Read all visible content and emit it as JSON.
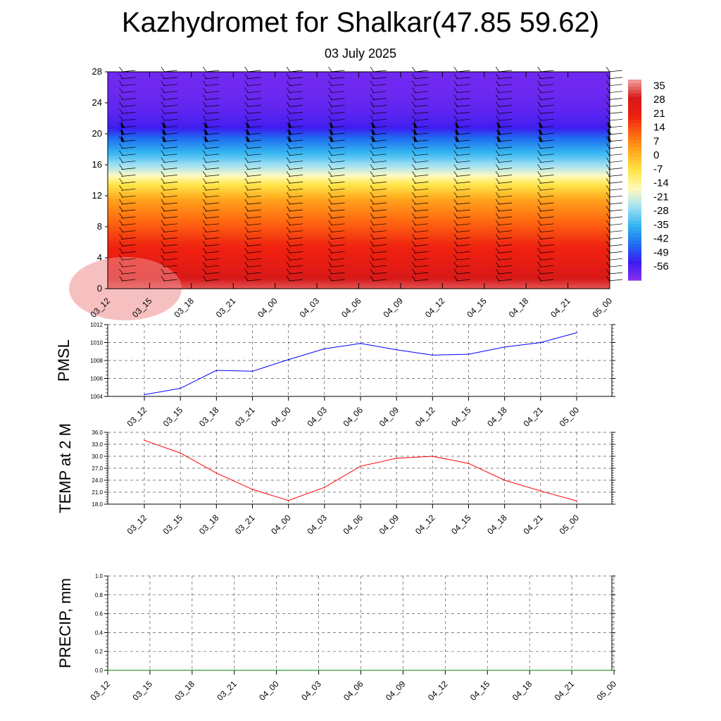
{
  "header": {
    "title": "Kazhydromet for Shalkar(47.85 59.62)",
    "subtitle": "03 July 2025"
  },
  "chart_data": [
    {
      "type": "heatmap",
      "title": "",
      "xlabel": "",
      "ylabel": "",
      "x": [
        "03_12",
        "03_15",
        "03_18",
        "03_21",
        "04_00",
        "04_03",
        "04_06",
        "04_09",
        "04_12",
        "04_15",
        "04_18",
        "04_21",
        "05_00"
      ],
      "y_ticks": [
        0,
        4,
        8,
        12,
        16,
        20,
        24,
        28
      ],
      "ylim": [
        0,
        28
      ],
      "colorbar": {
        "labels": [
          35,
          28,
          21,
          14,
          7,
          0,
          -7,
          -14,
          -21,
          -28,
          -35,
          -42,
          -49,
          -56
        ],
        "range": [
          -63,
          38
        ],
        "colors": [
          "#8a30f0",
          "#3a1cf0",
          "#1f6ef2",
          "#33b4f0",
          "#9ee0f4",
          "#fffac0",
          "#ffe64a",
          "#ffae20",
          "#ff6a10",
          "#ef2010",
          "#d81818",
          "#f0a0a0"
        ]
      },
      "temperature_profile": [
        {
          "height": 0,
          "value": 33
        },
        {
          "height": 3,
          "value": 24
        },
        {
          "height": 6,
          "value": 18
        },
        {
          "height": 9,
          "value": 10
        },
        {
          "height": 11.5,
          "value": 3
        },
        {
          "height": 13.5,
          "value": -8
        },
        {
          "height": 15,
          "value": -20
        },
        {
          "height": 17,
          "value": -32
        },
        {
          "height": 19.5,
          "value": -45
        },
        {
          "height": 21,
          "value": -55
        },
        {
          "height": 23,
          "value": -58
        },
        {
          "height": 26,
          "value": -60
        },
        {
          "height": 28,
          "value": -60
        }
      ],
      "wind_barbs": "shown",
      "grid": false
    },
    {
      "type": "line",
      "ylabel": "PMSL",
      "x": [
        "03_12",
        "03_15",
        "03_18",
        "03_21",
        "04_00",
        "04_03",
        "04_06",
        "04_09",
        "04_12",
        "04_15",
        "04_18",
        "04_21",
        "05_00"
      ],
      "y_ticks": [
        1004,
        1006,
        1008,
        1010,
        1012
      ],
      "ylim": [
        1004,
        1012
      ],
      "series": [
        {
          "values": [
            1004.2,
            1004.9,
            1006.9,
            1006.8,
            1008.1,
            1009.3,
            1009.9,
            1009.2,
            1008.6,
            1008.7,
            1009.5,
            1010.0,
            1011.1
          ],
          "color": "#0000ff"
        }
      ],
      "grid": true
    },
    {
      "type": "line",
      "ylabel": "TEMP at 2 M",
      "x": [
        "03_12",
        "03_15",
        "03_18",
        "03_21",
        "04_00",
        "04_03",
        "04_06",
        "04_09",
        "04_12",
        "04_15",
        "04_18",
        "04_21",
        "05_00"
      ],
      "y_ticks": [
        "18.0",
        "21.0",
        "24.0",
        "27.0",
        "30.0",
        "33.0",
        "36.0"
      ],
      "ylim": [
        18,
        36
      ],
      "series": [
        {
          "values": [
            34.0,
            30.8,
            25.8,
            21.7,
            18.9,
            22.2,
            27.5,
            29.5,
            30.0,
            28.2,
            24.0,
            21.3,
            18.8
          ],
          "color": "#ff0000"
        }
      ],
      "grid": true
    },
    {
      "type": "line",
      "ylabel": "PRECIP, mm",
      "x": [
        "03_12",
        "03_15",
        "03_18",
        "03_21",
        "04_00",
        "04_03",
        "04_06",
        "04_09",
        "04_12",
        "04_15",
        "04_18",
        "04_21",
        "05_00"
      ],
      "y_ticks": [
        "0.0",
        "0.2",
        "0.4",
        "0.6",
        "0.8",
        "1.0"
      ],
      "ylim": [
        0,
        1
      ],
      "series": [
        {
          "values": [
            0,
            0,
            0,
            0,
            0,
            0,
            0,
            0,
            0,
            0,
            0,
            0,
            0
          ],
          "color": "#008000"
        }
      ],
      "grid": true
    }
  ]
}
